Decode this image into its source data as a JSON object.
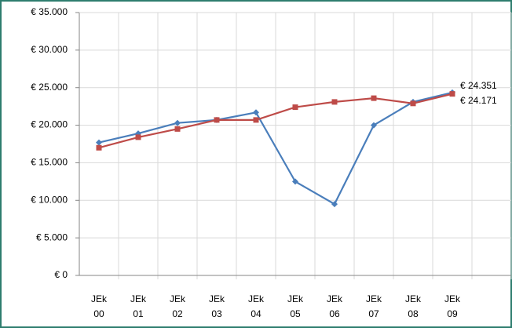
{
  "chart_data": {
    "type": "line",
    "categories": [
      "JEk 00",
      "JEk 01",
      "JEk 02",
      "JEk 03",
      "JEk 04",
      "JEk 05",
      "JEk 06",
      "JEk 07",
      "JEk 08",
      "JEk 09",
      null
    ],
    "series": [
      {
        "color": "#4a7ebb",
        "marker": "diamond",
        "values": [
          17700,
          18900,
          20300,
          20700,
          21700,
          12500,
          9500,
          20000,
          23100,
          24351,
          null
        ],
        "value_labels": [
          null,
          null,
          null,
          null,
          null,
          null,
          null,
          null,
          null,
          "€ 24.351",
          null
        ]
      },
      {
        "color": "#be4b48",
        "marker": "square",
        "values": [
          17000,
          18400,
          19500,
          20700,
          20700,
          22400,
          23100,
          23600,
          22900,
          24171,
          null
        ],
        "value_labels": [
          null,
          null,
          null,
          null,
          null,
          null,
          null,
          null,
          null,
          "€ 24.171",
          null
        ]
      }
    ],
    "ylim": [
      0,
      35000
    ],
    "yticks": [
      {
        "value": 0,
        "label": "€ 0"
      },
      {
        "value": 5000,
        "label": "€ 5.000"
      },
      {
        "value": 10000,
        "label": "€ 10.000"
      },
      {
        "value": 15000,
        "label": "€ 15.000"
      },
      {
        "value": 20000,
        "label": "€ 20.000"
      },
      {
        "value": 25000,
        "label": "€ 25.000"
      },
      {
        "value": 30000,
        "label": "€ 30.000"
      },
      {
        "value": 35000,
        "label": "€ 35.000"
      }
    ],
    "grid": true
  }
}
